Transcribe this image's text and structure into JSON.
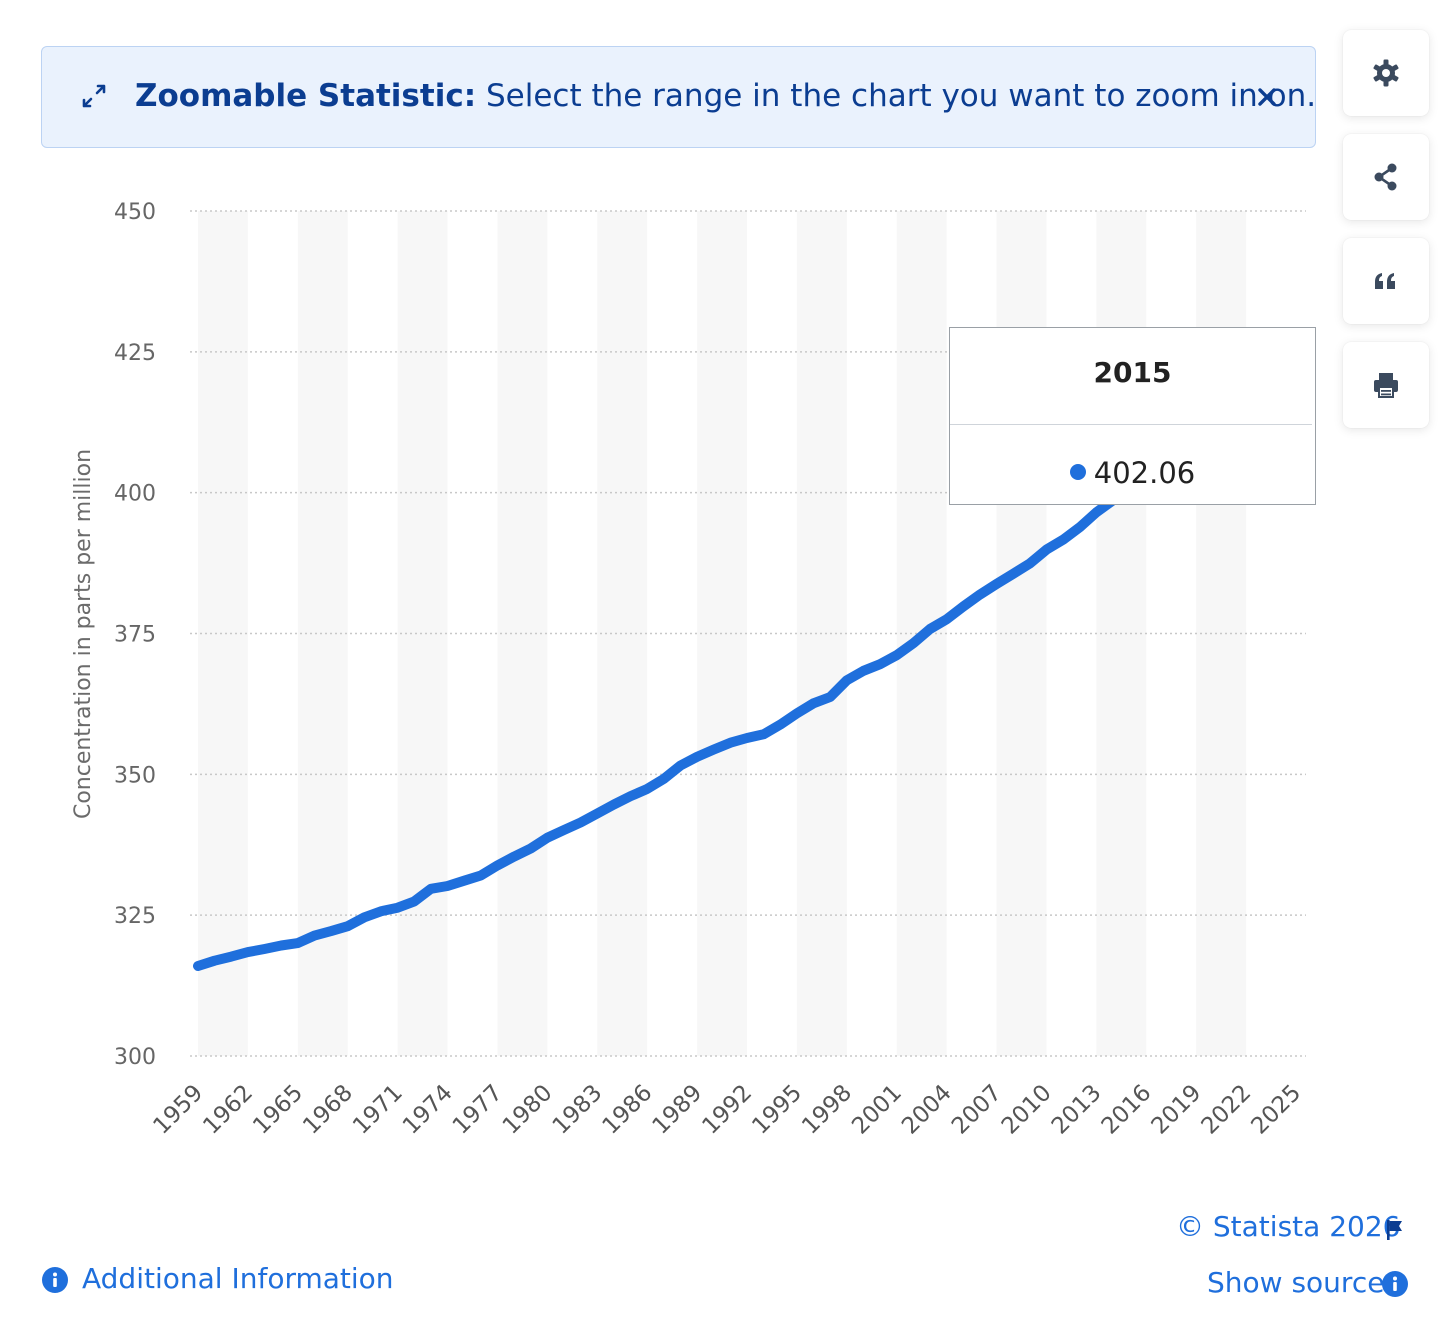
{
  "banner": {
    "title": "Zoomable Statistic:",
    "text": "Select the range in the chart you want to zoom in on.",
    "close_icon": "close-icon",
    "expand_icon": "expand-icon"
  },
  "side_tools": [
    {
      "name": "settings",
      "icon": "gear-icon"
    },
    {
      "name": "share",
      "icon": "share-icon"
    },
    {
      "name": "cite",
      "icon": "quote-icon"
    },
    {
      "name": "print",
      "icon": "printer-icon"
    }
  ],
  "tooltip": {
    "year": "2015",
    "value": "402.06"
  },
  "footer": {
    "copyright": "© Statista 2026",
    "additional_info": "Additional Information",
    "show_source": "Show source"
  },
  "colors": {
    "line": "#1f6fdc",
    "accent": "#1f6fdc",
    "banner_text": "#0b3d91",
    "band": "#f7f7f7"
  },
  "chart_data": {
    "type": "line",
    "title": "",
    "xlabel": "",
    "ylabel": "Concentration in parts per million",
    "ylim": [
      300,
      450
    ],
    "yticks": [
      300,
      325,
      350,
      375,
      400,
      425,
      450
    ],
    "xlim": [
      1959,
      2025
    ],
    "xticks": [
      1959,
      1962,
      1965,
      1968,
      1971,
      1974,
      1977,
      1980,
      1983,
      1986,
      1989,
      1992,
      1995,
      1998,
      2001,
      2004,
      2007,
      2010,
      2013,
      2016,
      2019,
      2022,
      2025
    ],
    "grid": "horizontal-dotted",
    "series": [
      {
        "x": [
          1959,
          1960,
          1961,
          1962,
          1963,
          1964,
          1965,
          1966,
          1967,
          1968,
          1969,
          1970,
          1971,
          1972,
          1973,
          1974,
          1975,
          1976,
          1977,
          1978,
          1979,
          1980,
          1981,
          1982,
          1983,
          1984,
          1985,
          1986,
          1987,
          1988,
          1989,
          1990,
          1991,
          1992,
          1993,
          1994,
          1995,
          1996,
          1997,
          1998,
          1999,
          2000,
          2001,
          2002,
          2003,
          2004,
          2005,
          2006,
          2007,
          2008,
          2009,
          2010,
          2011,
          2012,
          2013,
          2014,
          2015
        ],
        "values": [
          315.98,
          316.91,
          317.64,
          318.45,
          318.99,
          319.62,
          320.04,
          321.37,
          322.18,
          323.05,
          324.62,
          325.68,
          326.32,
          327.45,
          329.68,
          330.18,
          331.11,
          332.04,
          333.83,
          335.4,
          336.84,
          338.75,
          340.11,
          341.45,
          343.05,
          344.65,
          346.12,
          347.42,
          349.19,
          351.57,
          353.12,
          354.39,
          355.61,
          356.45,
          357.1,
          358.83,
          360.82,
          362.61,
          363.73,
          366.7,
          368.38,
          369.55,
          371.14,
          373.28,
          375.8,
          377.52,
          379.8,
          381.9,
          383.79,
          385.6,
          387.43,
          389.9,
          391.65,
          393.85,
          396.52,
          398.65,
          402.06
        ]
      }
    ]
  }
}
